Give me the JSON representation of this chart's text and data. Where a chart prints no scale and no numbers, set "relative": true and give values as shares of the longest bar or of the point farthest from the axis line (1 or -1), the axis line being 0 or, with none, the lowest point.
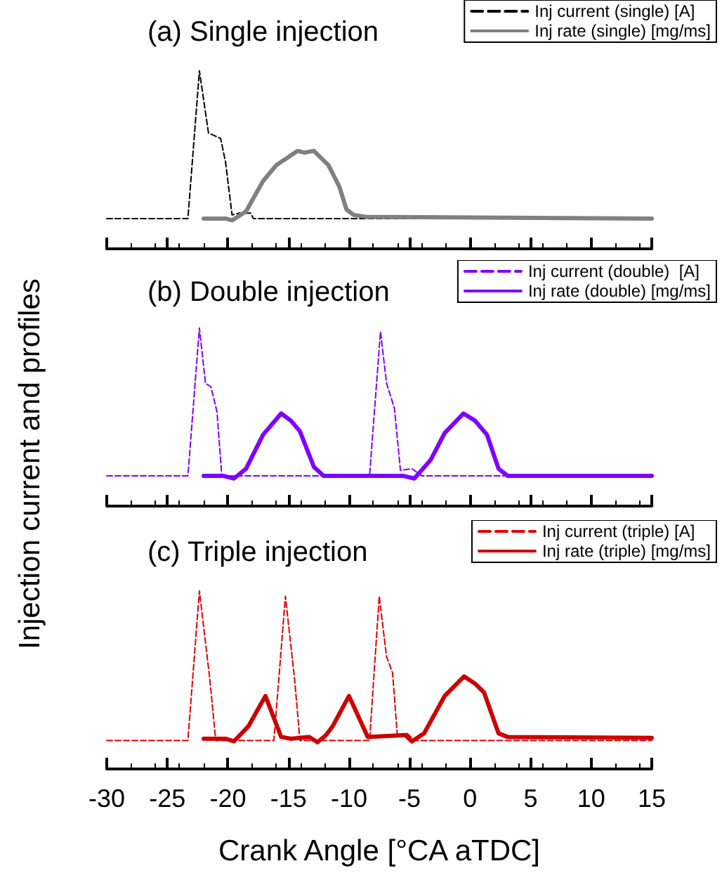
{
  "chart_data": [
    {
      "type": "line",
      "title": "(a) Single injection",
      "relative": true,
      "xlim": [
        -30,
        15
      ],
      "xticks": [
        -30,
        -25,
        -20,
        -15,
        -10,
        -5,
        0,
        5,
        10,
        15
      ],
      "tick_labels": false,
      "legend": "top right",
      "series": [
        {
          "name": "Inj current (single) [A]",
          "color": "#000000",
          "line_style": "dashed",
          "x": [
            -30,
            -23.3,
            -22.35,
            -21.6,
            -20.6,
            -20.2,
            -19.65,
            -19.1,
            -18.1,
            -17.9,
            15
          ],
          "values": [
            0.17,
            0.17,
            1.0,
            0.65,
            0.62,
            0.49,
            0.19,
            0.2,
            0.2,
            0.17,
            0.17
          ]
        },
        {
          "name": "Inj rate (single) [mg/ms]",
          "color": "#808080",
          "line_style": "solid",
          "x": [
            -22,
            -20.2,
            -19.65,
            -18.5,
            -17.1,
            -16,
            -14.25,
            -13.7,
            -12.9,
            -11.7,
            -10.8,
            -10.2,
            -9.6,
            -8.6,
            15
          ],
          "values": [
            0.17,
            0.17,
            0.16,
            0.21,
            0.38,
            0.47,
            0.55,
            0.54,
            0.55,
            0.47,
            0.35,
            0.22,
            0.19,
            0.18,
            0.17
          ]
        }
      ]
    },
    {
      "type": "line",
      "title": "(b) Double injection",
      "ylabel": "Injection current and profiles",
      "relative": true,
      "xlim": [
        -30,
        15
      ],
      "xticks": [
        -30,
        -25,
        -20,
        -15,
        -10,
        -5,
        0,
        5,
        10,
        15
      ],
      "tick_labels": false,
      "legend": "top right",
      "series": [
        {
          "name": "Inj current (double)  [A]",
          "color": "#8000ff",
          "line_style": "dashed",
          "x": [
            -30,
            -23.3,
            -22.35,
            -21.85,
            -21.4,
            -20.9,
            -20.5,
            -8.3,
            -7.4,
            -6.9,
            -6.25,
            -5.75,
            -4.8,
            -4,
            15
          ],
          "values": [
            0.17,
            0.17,
            1.0,
            0.69,
            0.67,
            0.53,
            0.17,
            0.17,
            0.98,
            0.69,
            0.55,
            0.2,
            0.21,
            0.17,
            0.17
          ]
        },
        {
          "name": "Inj rate (double) [mg/ms]",
          "color": "#8000ff",
          "line_style": "solid",
          "x": [
            -22,
            -20.4,
            -19.5,
            -18.5,
            -17.1,
            -15.6,
            -14.8,
            -14.05,
            -12.9,
            -12.1,
            -5.55,
            -4.6,
            -3.25,
            -2.1,
            -0.55,
            0.4,
            1.4,
            2.35,
            3.1,
            15
          ],
          "values": [
            0.17,
            0.17,
            0.155,
            0.21,
            0.4,
            0.52,
            0.48,
            0.42,
            0.22,
            0.17,
            0.17,
            0.155,
            0.26,
            0.41,
            0.52,
            0.48,
            0.4,
            0.21,
            0.17,
            0.17
          ]
        }
      ]
    },
    {
      "type": "line",
      "title": "(c) Triple injection",
      "xlabel": "Crank Angle [°CA aTDC]",
      "relative": true,
      "xlim": [
        -30,
        15
      ],
      "xticks": [
        -30,
        -25,
        -20,
        -15,
        -10,
        -5,
        0,
        5,
        10,
        15
      ],
      "tick_labels": "x",
      "legend": "top right",
      "series": [
        {
          "name": "Inj current (triple) [A]",
          "color": "#e00000",
          "line_style": "dashed",
          "x": [
            -30,
            -23.3,
            -22.35,
            -21.5,
            -21,
            -16.2,
            -15.25,
            -14.5,
            -14.05,
            -8.3,
            -7.5,
            -6.9,
            -6.4,
            -6,
            -5.2,
            -4.6,
            15
          ],
          "values": [
            0.16,
            0.16,
            1.0,
            0.51,
            0.16,
            0.16,
            0.97,
            0.51,
            0.16,
            0.16,
            0.97,
            0.63,
            0.54,
            0.18,
            0.2,
            0.16,
            0.16
          ]
        },
        {
          "name": "Inj rate (triple) [mg/ms]",
          "color": "#cc0000",
          "line_style": "solid",
          "x": [
            -22,
            -20.2,
            -19.5,
            -18.3,
            -16.9,
            -15.6,
            -14.8,
            -13.3,
            -12.6,
            -11.9,
            -11.35,
            -10,
            -8.45,
            -5.35,
            -4.8,
            -3.8,
            -2.1,
            -0.5,
            0.4,
            1.15,
            2.35,
            3.1,
            15
          ],
          "values": [
            0.17,
            0.17,
            0.155,
            0.24,
            0.41,
            0.18,
            0.17,
            0.18,
            0.15,
            0.19,
            0.24,
            0.41,
            0.18,
            0.19,
            0.155,
            0.2,
            0.41,
            0.52,
            0.48,
            0.43,
            0.2,
            0.18,
            0.175
          ]
        }
      ]
    }
  ]
}
